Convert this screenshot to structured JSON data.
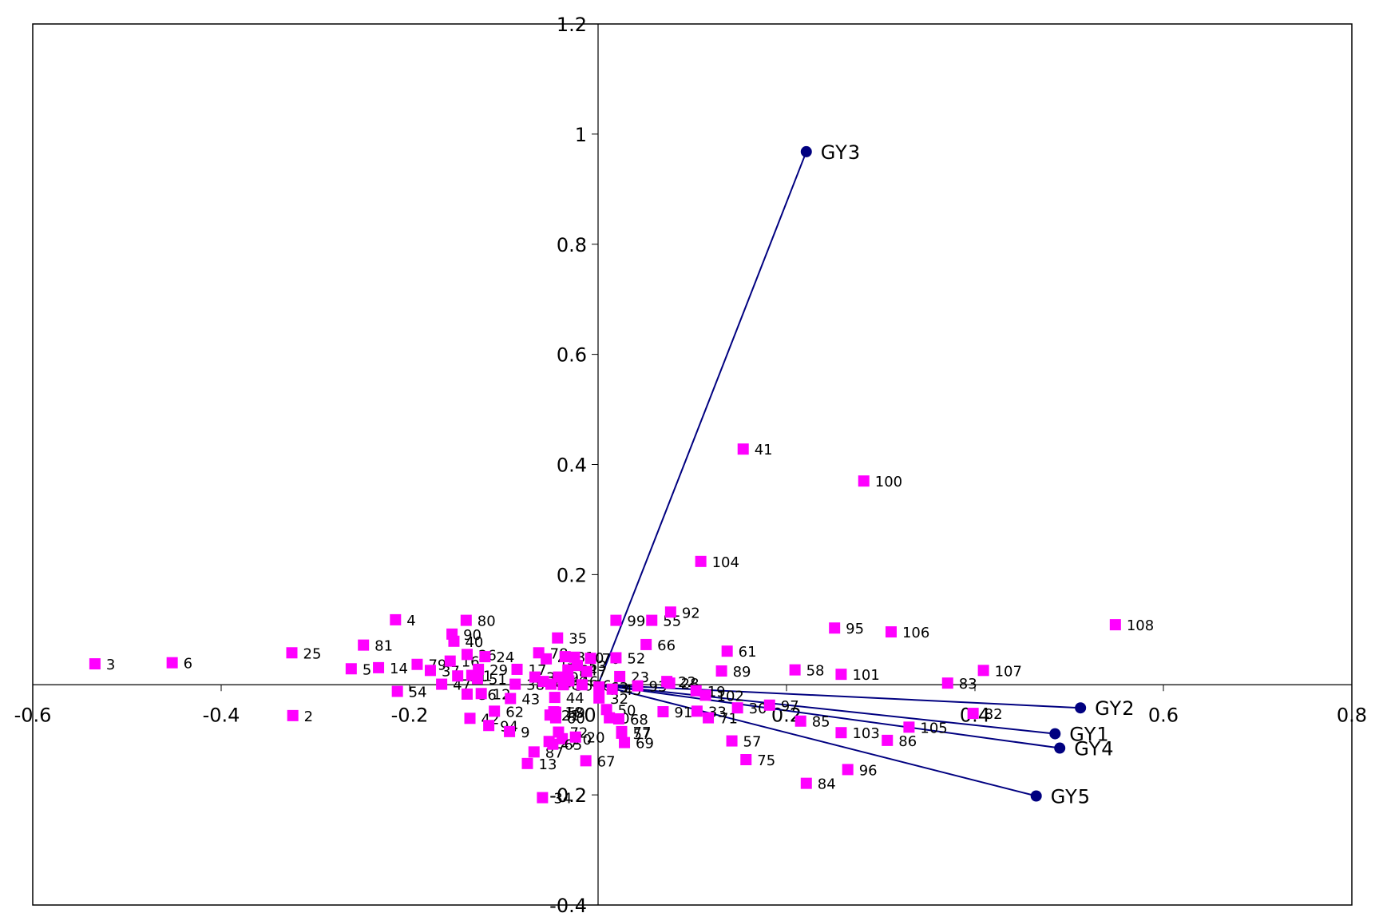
{
  "chart_data": {
    "type": "scatter",
    "title": "",
    "xlabel": "",
    "ylabel": "",
    "xlim": [
      -0.6,
      0.8
    ],
    "ylim": [
      -0.4,
      1.2
    ],
    "x_ticks": [
      "-0.6",
      "-0.4",
      "-0.2",
      "0",
      "0.2",
      "0.4",
      "0.6",
      "0.8"
    ],
    "y_ticks": [
      "-0.4",
      "-0.2",
      "0",
      "0.2",
      "0.4",
      "0.6",
      "0.8",
      "1",
      "1.2"
    ],
    "x_tick_values": [
      -0.6,
      -0.4,
      -0.2,
      0,
      0.2,
      0.4,
      0.6,
      0.8
    ],
    "y_tick_values": [
      -0.4,
      -0.2,
      0,
      0.2,
      0.4,
      0.6,
      0.8,
      1,
      1.2
    ],
    "grid": false,
    "legend": "none",
    "genotype_color": "#FF00FF",
    "environment_color": "#000080",
    "environments": [
      {
        "label": "GY3",
        "x": 0.221,
        "y": 0.968
      },
      {
        "label": "GY2",
        "x": 0.512,
        "y": -0.042
      },
      {
        "label": "GY1",
        "x": 0.485,
        "y": -0.089
      },
      {
        "label": "GY4",
        "x": 0.49,
        "y": -0.115
      },
      {
        "label": "GY5",
        "x": 0.465,
        "y": -0.202
      }
    ],
    "genotypes": [
      {
        "label": "3",
        "x": -0.534,
        "y": 0.038
      },
      {
        "label": "6",
        "x": -0.452,
        "y": 0.04
      },
      {
        "label": "25",
        "x": -0.325,
        "y": 0.058
      },
      {
        "label": "2",
        "x": -0.324,
        "y": -0.056
      },
      {
        "label": "81",
        "x": -0.249,
        "y": 0.072
      },
      {
        "label": "5",
        "x": -0.262,
        "y": 0.029
      },
      {
        "label": "14",
        "x": -0.233,
        "y": 0.031
      },
      {
        "label": "4",
        "x": -0.215,
        "y": 0.118
      },
      {
        "label": "54",
        "x": -0.213,
        "y": -0.012
      },
      {
        "label": "79",
        "x": -0.192,
        "y": 0.037
      },
      {
        "label": "37",
        "x": -0.178,
        "y": 0.026
      },
      {
        "label": "47",
        "x": -0.166,
        "y": 0.001
      },
      {
        "label": "90",
        "x": -0.155,
        "y": 0.092
      },
      {
        "label": "40",
        "x": -0.153,
        "y": 0.079
      },
      {
        "label": "16",
        "x": -0.157,
        "y": 0.043
      },
      {
        "label": "11",
        "x": -0.149,
        "y": 0.016
      },
      {
        "label": "80",
        "x": -0.14,
        "y": 0.117
      },
      {
        "label": "26",
        "x": -0.139,
        "y": 0.055
      },
      {
        "label": "36",
        "x": -0.139,
        "y": -0.017
      },
      {
        "label": "1",
        "x": -0.134,
        "y": 0.017
      },
      {
        "label": "42",
        "x": -0.136,
        "y": -0.061
      },
      {
        "label": "29",
        "x": -0.127,
        "y": 0.028
      },
      {
        "label": "51",
        "x": -0.128,
        "y": 0.011
      },
      {
        "label": "12",
        "x": -0.124,
        "y": -0.016
      },
      {
        "label": "24",
        "x": -0.12,
        "y": 0.051
      },
      {
        "label": "62",
        "x": -0.11,
        "y": -0.048
      },
      {
        "label": "94",
        "x": -0.116,
        "y": -0.074
      },
      {
        "label": "43",
        "x": -0.093,
        "y": -0.025
      },
      {
        "label": "17",
        "x": -0.086,
        "y": 0.028
      },
      {
        "label": "38",
        "x": -0.088,
        "y": 0.001
      },
      {
        "label": "9",
        "x": -0.094,
        "y": -0.085
      },
      {
        "label": "13",
        "x": -0.075,
        "y": -0.143
      },
      {
        "label": "87",
        "x": -0.068,
        "y": -0.122
      },
      {
        "label": "34",
        "x": -0.059,
        "y": -0.205
      },
      {
        "label": "78",
        "x": -0.063,
        "y": 0.058
      },
      {
        "label": "39",
        "x": -0.067,
        "y": 0.014
      },
      {
        "label": "49",
        "x": -0.055,
        "y": 0.047
      },
      {
        "label": "88",
        "x": -0.058,
        "y": 0.006
      },
      {
        "label": "48",
        "x": -0.05,
        "y": 0.001
      },
      {
        "label": "44",
        "x": -0.046,
        "y": -0.023
      },
      {
        "label": "35",
        "x": -0.043,
        "y": 0.085
      },
      {
        "label": "31",
        "x": -0.035,
        "y": 0.051
      },
      {
        "label": "98",
        "x": -0.042,
        "y": 0.014
      },
      {
        "label": "18",
        "x": -0.047,
        "y": -0.049
      },
      {
        "label": "21",
        "x": -0.051,
        "y": -0.055
      },
      {
        "label": "60",
        "x": -0.045,
        "y": -0.06
      },
      {
        "label": "59",
        "x": -0.045,
        "y": -0.05
      },
      {
        "label": "27",
        "x": -0.052,
        "y": -0.103
      },
      {
        "label": "72",
        "x": -0.042,
        "y": -0.086
      },
      {
        "label": "70",
        "x": -0.038,
        "y": -0.098
      },
      {
        "label": "65",
        "x": -0.048,
        "y": -0.108
      },
      {
        "label": "10",
        "x": -0.025,
        "y": 0.05
      },
      {
        "label": "64",
        "x": -0.032,
        "y": 0.027
      },
      {
        "label": "46",
        "x": -0.031,
        "y": 0.007
      },
      {
        "label": "56",
        "x": -0.037,
        "y": 0.0
      },
      {
        "label": "53",
        "x": -0.022,
        "y": 0.035
      },
      {
        "label": "86b",
        "x": -0.017,
        "y": 0.0
      },
      {
        "label": "76",
        "x": -0.008,
        "y": 0.048
      },
      {
        "label": "7",
        "x": -0.012,
        "y": 0.024
      },
      {
        "label": "20",
        "x": -0.024,
        "y": -0.095
      },
      {
        "label": "67",
        "x": -0.013,
        "y": -0.138
      },
      {
        "label": "0",
        "x": 0.012,
        "y": -0.06
      },
      {
        "label": "50",
        "x": 0.009,
        "y": -0.045
      },
      {
        "label": "32",
        "x": 0.001,
        "y": -0.024
      },
      {
        "label": "63",
        "x": 0.001,
        "y": -0.004
      },
      {
        "label": "52",
        "x": 0.019,
        "y": 0.049
      },
      {
        "label": "99",
        "x": 0.019,
        "y": 0.117
      },
      {
        "label": "23",
        "x": 0.023,
        "y": 0.015
      },
      {
        "label": "69",
        "x": 0.028,
        "y": -0.105
      },
      {
        "label": "68",
        "x": 0.022,
        "y": -0.062
      },
      {
        "label": "77",
        "x": 0.025,
        "y": -0.085
      },
      {
        "label": "57b",
        "x": 0.025,
        "y": -0.088
      },
      {
        "label": "45",
        "x": 0.015,
        "y": -0.008
      },
      {
        "label": "66",
        "x": 0.051,
        "y": 0.073
      },
      {
        "label": "55",
        "x": 0.057,
        "y": 0.117
      },
      {
        "label": "93",
        "x": 0.042,
        "y": -0.002
      },
      {
        "label": "92",
        "x": 0.077,
        "y": 0.132
      },
      {
        "label": "91",
        "x": 0.069,
        "y": -0.049
      },
      {
        "label": "22",
        "x": 0.073,
        "y": 0.006
      },
      {
        "label": "28",
        "x": 0.076,
        "y": 0.003
      },
      {
        "label": "19",
        "x": 0.104,
        "y": -0.011
      },
      {
        "label": "102",
        "x": 0.114,
        "y": -0.019
      },
      {
        "label": "33",
        "x": 0.105,
        "y": -0.048
      },
      {
        "label": "71",
        "x": 0.117,
        "y": -0.06
      },
      {
        "label": "104",
        "x": 0.109,
        "y": 0.224
      },
      {
        "label": "61",
        "x": 0.137,
        "y": 0.061
      },
      {
        "label": "89",
        "x": 0.131,
        "y": 0.025
      },
      {
        "label": "30",
        "x": 0.148,
        "y": -0.042
      },
      {
        "label": "57",
        "x": 0.142,
        "y": -0.102
      },
      {
        "label": "75",
        "x": 0.157,
        "y": -0.136
      },
      {
        "label": "41",
        "x": 0.154,
        "y": 0.428
      },
      {
        "label": "97",
        "x": 0.182,
        "y": -0.037
      },
      {
        "label": "58",
        "x": 0.209,
        "y": 0.027
      },
      {
        "label": "85",
        "x": 0.215,
        "y": -0.066
      },
      {
        "label": "84",
        "x": 0.221,
        "y": -0.179
      },
      {
        "label": "101",
        "x": 0.258,
        "y": 0.019
      },
      {
        "label": "103",
        "x": 0.258,
        "y": -0.087
      },
      {
        "label": "95",
        "x": 0.251,
        "y": 0.103
      },
      {
        "label": "96",
        "x": 0.265,
        "y": -0.154
      },
      {
        "label": "100",
        "x": 0.282,
        "y": 0.37
      },
      {
        "label": "106",
        "x": 0.311,
        "y": 0.096
      },
      {
        "label": "86",
        "x": 0.307,
        "y": -0.101
      },
      {
        "label": "105",
        "x": 0.33,
        "y": -0.077
      },
      {
        "label": "83",
        "x": 0.371,
        "y": 0.003
      },
      {
        "label": "107",
        "x": 0.409,
        "y": 0.026
      },
      {
        "label": "82",
        "x": 0.398,
        "y": -0.052
      },
      {
        "label": "108",
        "x": 0.549,
        "y": 0.109
      }
    ]
  }
}
